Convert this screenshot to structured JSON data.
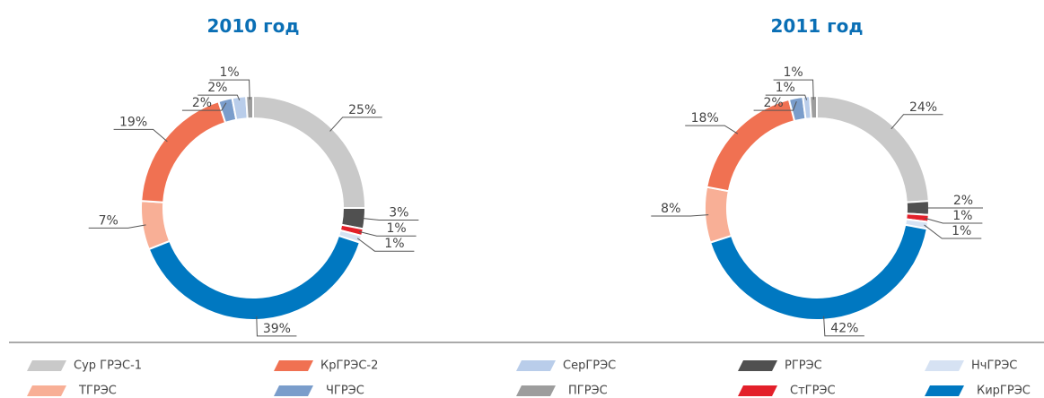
{
  "chart_data": [
    {
      "type": "pie",
      "title": "2010 год",
      "categories": [
        "Сур ГРЭС-1",
        "РГРЭС",
        "СтГРЭС",
        "НчГРЭС",
        "КирГРЭС",
        "ТГРЭС",
        "КрГРЭС-2",
        "ЧГРЭС",
        "СерГРЭС",
        "ПГРЭС"
      ],
      "values": [
        25,
        3,
        1,
        1,
        39,
        7,
        19,
        2,
        2,
        1
      ],
      "value_labels": [
        "25%",
        "3%",
        "1%",
        "1%",
        "39%",
        "7%",
        "19%",
        "2%",
        "2%",
        "1%"
      ],
      "colors": [
        "#c9c9c9",
        "#505050",
        "#e3202a",
        "#d6e2f3",
        "#0078c1",
        "#f8af96",
        "#f07152",
        "#7a9dcb",
        "#b9cdea",
        "#9d9d9d"
      ],
      "legend": "bottom"
    },
    {
      "type": "pie",
      "title": "2011 год",
      "categories": [
        "Сур ГРЭС-1",
        "РГРЭС",
        "СтГРЭС",
        "НчГРЭС",
        "КирГРЭС",
        "ТГРЭС",
        "КрГРЭС-2",
        "ЧГРЭС",
        "СерГРЭС",
        "ПГРЭС"
      ],
      "values": [
        24,
        2,
        1,
        1,
        42,
        8,
        18,
        2,
        1,
        1
      ],
      "value_labels": [
        "24%",
        "2%",
        "1%",
        "1%",
        "42%",
        "8%",
        "18%",
        "2%",
        "1%",
        "1%"
      ],
      "colors": [
        "#c9c9c9",
        "#505050",
        "#e3202a",
        "#d6e2f3",
        "#0078c1",
        "#f8af96",
        "#f07152",
        "#7a9dcb",
        "#b9cdea",
        "#9d9d9d"
      ],
      "legend": "bottom"
    }
  ]
}
